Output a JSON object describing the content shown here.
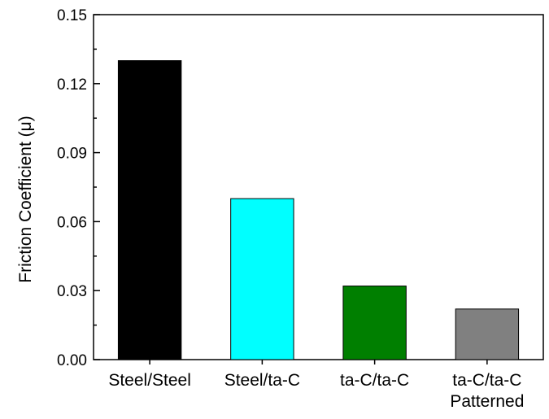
{
  "chart_data": {
    "type": "bar",
    "categories": [
      "Steel/Steel",
      "Steel/ta-C",
      "ta-C/ta-C",
      "ta-C/ta-C\nPatterned"
    ],
    "values": [
      0.13,
      0.07,
      0.032,
      0.022
    ],
    "colors": [
      "#000000",
      "#00ffff",
      "#007f00",
      "#808080"
    ],
    "title": "",
    "xlabel": "",
    "ylabel": "Friction Coefficient (μ)",
    "ylim": [
      0,
      0.15
    ],
    "yticks": [
      "0.00",
      "0.03",
      "0.06",
      "0.09",
      "0.12",
      "0.15"
    ],
    "ytick_values": [
      0,
      0.03,
      0.06,
      0.09,
      0.12,
      0.15
    ],
    "grid": false,
    "legend": "none"
  }
}
